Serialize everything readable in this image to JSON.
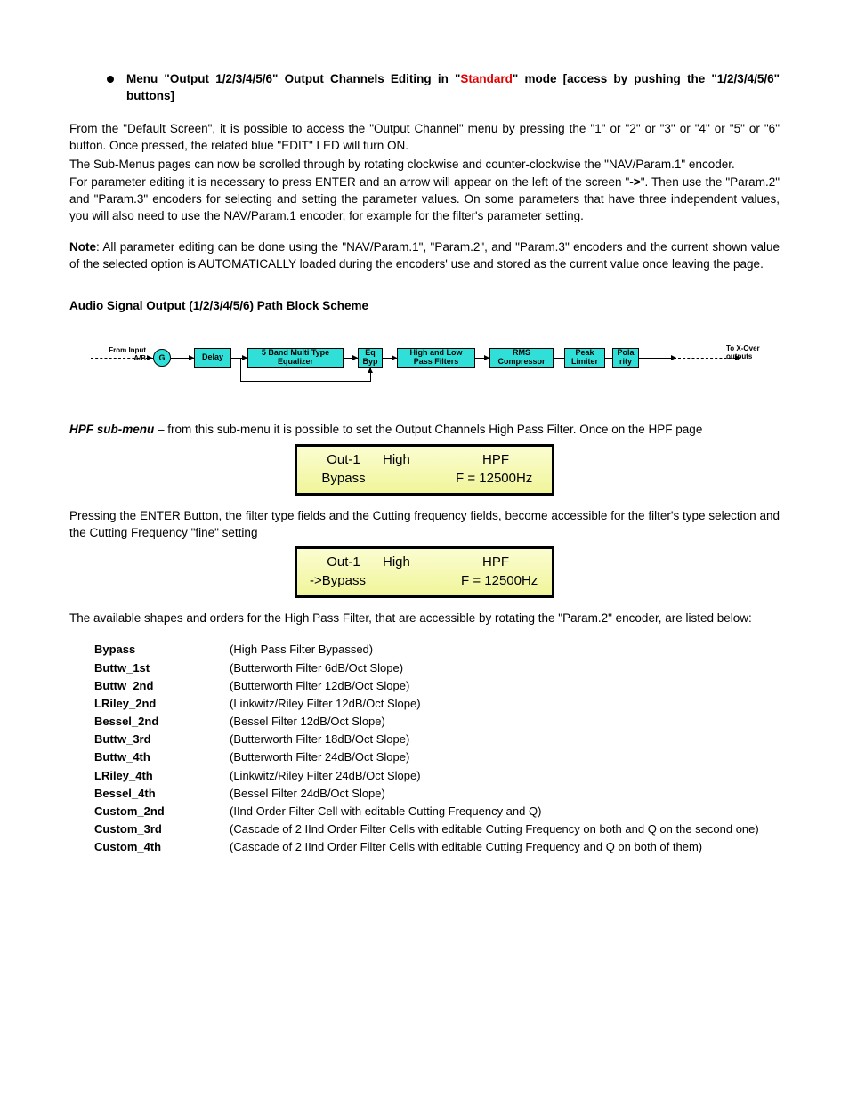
{
  "head": {
    "line1_pre": "Menu \"Output 1/2/3/4/5/6\" Output Channels Editing in \"",
    "line1_red": "Standard",
    "line1_post": "\" mode [access by pushing the \"1/2/3/4/5/6\" buttons]"
  },
  "p1a": "From the \"Default Screen\", it is possible to access the \"Output Channel\" menu by pressing the \"1\" or \"2\" or \"3\" or \"4\" or \"5\" or \"6\" button. Once pressed, the related blue \"EDIT\" LED will turn ON.",
  "p1b": "The Sub-Menus pages can now be scrolled through by rotating clockwise and counter-clockwise the \"NAV/Param.1\" encoder.",
  "p1c_pre": "For parameter editing it is necessary to press ENTER and an arrow will appear on the left of the screen \"",
  "p1c_bold": "->",
  "p1c_post": "\".  Then use the \"Param.2\" and \"Param.3\" encoders for selecting and setting the parameter values.  On some parameters that have three independent values, you will also need to use the NAV/Param.1 encoder, for example for the filter's parameter setting.",
  "note_label": "Note",
  "note_body": ": All parameter editing can be done using the \"NAV/Param.1\", \"Param.2\", and \"Param.3\" encoders and the current shown value of the selected option is AUTOMATICALLY loaded during the encoders' use and stored as the current value once leaving the page.",
  "section_title": "Audio Signal Output (1/2/3/4/5/6) Path Block Scheme",
  "diagram": {
    "input_label": "From Input A/B",
    "g": "G",
    "delay": "Delay",
    "eq5": "5 Band Multi Type Equalizer",
    "eqbyp": "Eq Byp",
    "hplp": "High and Low Pass Filters",
    "rms": "RMS Compressor",
    "peak": "Peak Limiter",
    "pola": "Pola rity",
    "out_label": "To X-Over outputs",
    "block_bg": "#30e0d8",
    "border": "#000000"
  },
  "hpf_intro_bold": "HPF sub-menu",
  "hpf_intro_rest": " – from this sub-menu it is possible to set the Output Channels High Pass Filter. Once on the HPF page",
  "lcd1": {
    "bg": "#fbfdd0",
    "r1c1": "Out-1",
    "r1c2": "High",
    "r1c3": "HPF",
    "r2c1": "Bypass",
    "r2c3": "F = 12500Hz"
  },
  "p_after_lcd1": "Pressing the ENTER Button, the filter type fields and the Cutting frequency fields, become accessible for the filter's type selection and the Cutting Frequency \"fine\" setting",
  "lcd2": {
    "bg": "#f3f79e",
    "r1c1": "Out-1",
    "r1c2": "High",
    "r1c3": "HPF",
    "r2c1": "->Bypass",
    "r2c3": "F = 12500Hz"
  },
  "p_after_lcd2": "The available shapes and orders for the High Pass Filter, that are accessible by rotating the \"Param.2\" encoder, are listed below:",
  "filters": [
    {
      "name": "Bypass",
      "desc": "(High Pass Filter Bypassed)"
    },
    {
      "name": "Buttw_1st",
      "desc": "(Butterworth Filter 6dB/Oct Slope)"
    },
    {
      "name": "Buttw_2nd",
      "desc": "(Butterworth Filter 12dB/Oct Slope)"
    },
    {
      "name": "LRiley_2nd",
      "desc": "(Linkwitz/Riley Filter 12dB/Oct Slope)"
    },
    {
      "name": "Bessel_2nd",
      "desc": "(Bessel Filter 12dB/Oct Slope)"
    },
    {
      "name": "Buttw_3rd",
      "desc": "(Butterworth Filter 18dB/Oct Slope)"
    },
    {
      "name": "Buttw_4th",
      "desc": "(Butterworth Filter 24dB/Oct Slope)"
    },
    {
      "name": "LRiley_4th",
      "desc": "(Linkwitz/Riley Filter 24dB/Oct Slope)"
    },
    {
      "name": "Bessel_4th",
      "desc": "(Bessel Filter 24dB/Oct Slope)"
    },
    {
      "name": "Custom_2nd",
      "desc": "(IInd Order Filter Cell with editable Cutting Frequency and Q)"
    },
    {
      "name": "Custom_3rd",
      "desc": "(Cascade of 2 IInd Order Filter Cells with editable Cutting Frequency on both and Q on the second one)"
    },
    {
      "name": "Custom_4th",
      "desc": "(Cascade of 2 IInd Order Filter Cells with editable Cutting Frequency and Q on both of them)"
    }
  ]
}
